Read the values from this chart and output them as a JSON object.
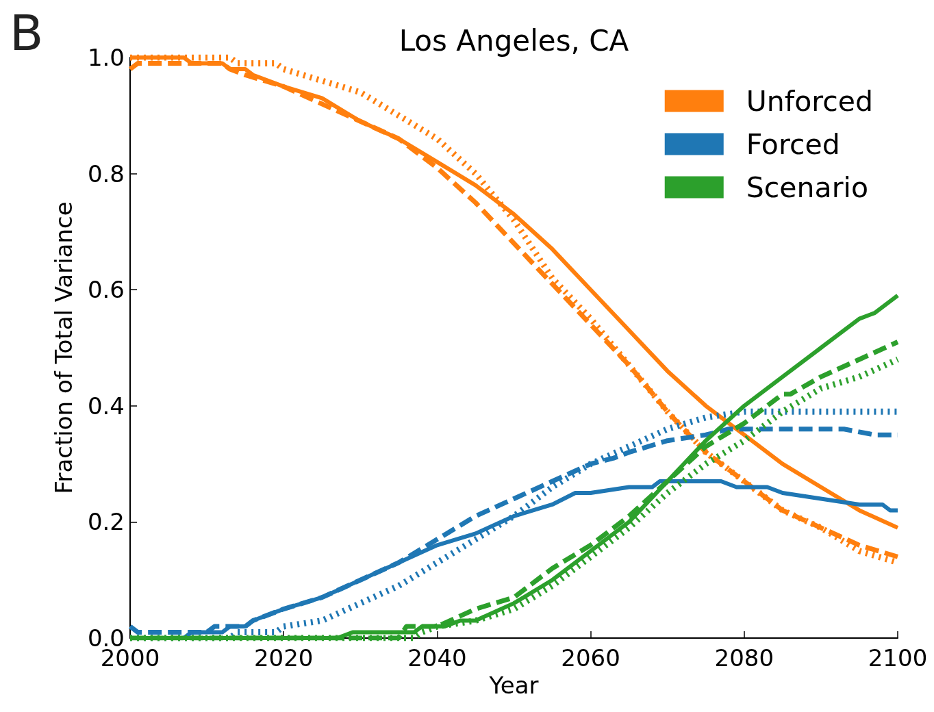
{
  "chart_data": {
    "type": "line",
    "title": "Los Angeles, CA",
    "xlabel": "Year",
    "ylabel": "Fraction of Total Variance",
    "annotations": [
      "B"
    ],
    "xlim": [
      2000,
      2100
    ],
    "xticks": [
      2000,
      2020,
      2040,
      2060,
      2080,
      2100
    ],
    "ylim": [
      0,
      1
    ],
    "yticks": [
      {
        "value": 0,
        "label": "0.0"
      },
      0.2,
      0.4,
      0.6,
      0.8,
      {
        "value": 1,
        "label": "1.0"
      }
    ],
    "grid": false,
    "legend": "top right",
    "marker": "none",
    "series": [
      {
        "name": "Unforced",
        "color": "#ff7f0e",
        "line_style": "solid",
        "x": [
          2000,
          2007,
          2008,
          2012,
          2013,
          2015,
          2016,
          2020,
          2025,
          2030,
          2035,
          2040,
          2045,
          2050,
          2055,
          2060,
          2065,
          2070,
          2075,
          2080,
          2085,
          2090,
          2095,
          2100
        ],
        "values": [
          1.0,
          1.0,
          0.99,
          0.99,
          0.98,
          0.98,
          0.97,
          0.95,
          0.93,
          0.89,
          0.86,
          0.82,
          0.78,
          0.73,
          0.67,
          0.6,
          0.53,
          0.46,
          0.4,
          0.35,
          0.3,
          0.26,
          0.22,
          0.19
        ]
      },
      {
        "color": "#ff7f0e",
        "line_style": "dashed",
        "x": [
          2000,
          2001,
          2012,
          2013,
          2015,
          2020,
          2025,
          2030,
          2035,
          2040,
          2045,
          2050,
          2055,
          2060,
          2065,
          2070,
          2075,
          2080,
          2085,
          2090,
          2095,
          2100
        ],
        "values": [
          0.98,
          0.99,
          0.99,
          0.98,
          0.97,
          0.95,
          0.92,
          0.89,
          0.86,
          0.81,
          0.75,
          0.68,
          0.61,
          0.54,
          0.47,
          0.39,
          0.32,
          0.27,
          0.22,
          0.19,
          0.16,
          0.14
        ]
      },
      {
        "color": "#ff7f0e",
        "line_style": "dotted",
        "x": [
          2000,
          2013,
          2014,
          2019,
          2020,
          2025,
          2030,
          2035,
          2040,
          2045,
          2050,
          2055,
          2060,
          2065,
          2070,
          2075,
          2080,
          2085,
          2090,
          2095,
          2100
        ],
        "values": [
          1.0,
          1.0,
          0.99,
          0.99,
          0.98,
          0.96,
          0.94,
          0.9,
          0.86,
          0.8,
          0.72,
          0.62,
          0.55,
          0.47,
          0.39,
          0.32,
          0.27,
          0.22,
          0.19,
          0.15,
          0.13
        ]
      },
      {
        "name": "Forced",
        "color": "#1f77b4",
        "line_style": "solid",
        "x": [
          2000,
          2007,
          2008,
          2012,
          2013,
          2015,
          2016,
          2020,
          2025,
          2030,
          2035,
          2040,
          2045,
          2050,
          2055,
          2058,
          2060,
          2065,
          2068,
          2069,
          2077,
          2079,
          2083,
          2085,
          2090,
          2095,
          2098,
          2099,
          2100
        ],
        "values": [
          0.0,
          0.0,
          0.01,
          0.01,
          0.02,
          0.02,
          0.03,
          0.05,
          0.07,
          0.1,
          0.13,
          0.16,
          0.18,
          0.21,
          0.23,
          0.25,
          0.25,
          0.26,
          0.26,
          0.27,
          0.27,
          0.26,
          0.26,
          0.25,
          0.24,
          0.23,
          0.23,
          0.22,
          0.22
        ]
      },
      {
        "color": "#1f77b4",
        "line_style": "dashed",
        "x": [
          2000,
          2001,
          2010,
          2011,
          2015,
          2016,
          2020,
          2025,
          2030,
          2035,
          2040,
          2045,
          2050,
          2055,
          2060,
          2063,
          2065,
          2070,
          2075,
          2078,
          2093,
          2097,
          2100
        ],
        "values": [
          0.02,
          0.01,
          0.01,
          0.02,
          0.02,
          0.03,
          0.05,
          0.07,
          0.1,
          0.13,
          0.17,
          0.21,
          0.24,
          0.27,
          0.3,
          0.31,
          0.32,
          0.34,
          0.35,
          0.36,
          0.36,
          0.35,
          0.35
        ]
      },
      {
        "color": "#1f77b4",
        "line_style": "dotted",
        "x": [
          2000,
          2013,
          2014,
          2019,
          2020,
          2025,
          2030,
          2035,
          2040,
          2045,
          2050,
          2055,
          2060,
          2065,
          2070,
          2075,
          2080,
          2100
        ],
        "values": [
          0.0,
          0.0,
          0.01,
          0.01,
          0.02,
          0.03,
          0.06,
          0.09,
          0.13,
          0.17,
          0.21,
          0.26,
          0.3,
          0.33,
          0.36,
          0.38,
          0.39,
          0.39
        ]
      },
      {
        "name": "Scenario",
        "color": "#2ca02c",
        "line_style": "solid",
        "x": [
          2000,
          2027,
          2029,
          2037,
          2038,
          2041,
          2043,
          2045,
          2050,
          2055,
          2060,
          2065,
          2070,
          2075,
          2080,
          2085,
          2090,
          2095,
          2097,
          2100
        ],
        "values": [
          0.0,
          0.0,
          0.01,
          0.01,
          0.02,
          0.02,
          0.03,
          0.03,
          0.06,
          0.1,
          0.15,
          0.2,
          0.27,
          0.34,
          0.4,
          0.45,
          0.5,
          0.55,
          0.56,
          0.59
        ]
      },
      {
        "color": "#2ca02c",
        "line_style": "dashed",
        "x": [
          2000,
          2035,
          2036,
          2040,
          2045,
          2050,
          2055,
          2060,
          2065,
          2070,
          2075,
          2080,
          2085,
          2086,
          2090,
          2095,
          2100
        ],
        "values": [
          0.0,
          0.0,
          0.02,
          0.02,
          0.05,
          0.07,
          0.12,
          0.16,
          0.21,
          0.27,
          0.33,
          0.37,
          0.42,
          0.42,
          0.45,
          0.48,
          0.51
        ]
      },
      {
        "color": "#2ca02c",
        "line_style": "dotted",
        "x": [
          2000,
          2037,
          2038,
          2040,
          2045,
          2050,
          2055,
          2060,
          2065,
          2070,
          2075,
          2080,
          2085,
          2090,
          2095,
          2100
        ],
        "values": [
          0.0,
          0.0,
          0.01,
          0.02,
          0.03,
          0.05,
          0.09,
          0.14,
          0.19,
          0.25,
          0.3,
          0.34,
          0.39,
          0.43,
          0.45,
          0.48
        ]
      }
    ]
  }
}
